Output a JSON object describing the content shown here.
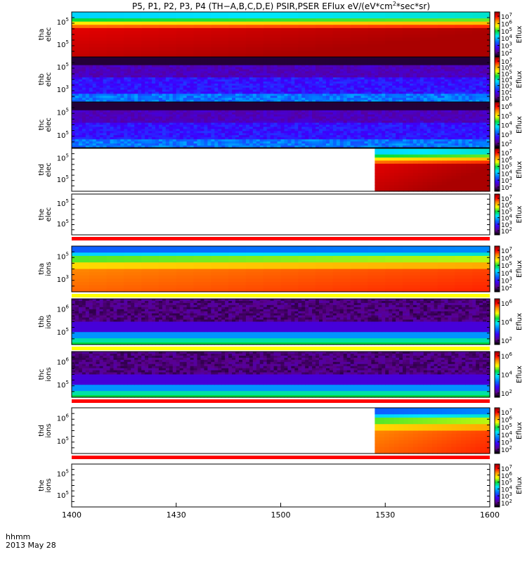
{
  "title_parts": {
    "main": "P5, P1, P2, P3, P4 (TH−A,B,C,D,E) PSIR,PSER EFlux eV/(eV*cm",
    "sup": "2",
    "tail": "*sec*sr)"
  },
  "x_axis": {
    "ticks": [
      "1400",
      "1430",
      "1500",
      "1530",
      "1600"
    ],
    "corner_label": "hhmm",
    "date_label": "2013 May 28"
  },
  "colorbar_label": "Eflux",
  "colors": {
    "bg": "#ffffff",
    "fill": "#ff0000",
    "flag_yellow": "#ffff00",
    "frame": "#000000"
  },
  "chart_data": {
    "type": "heatmap",
    "title": "P5, P1, P2, P3, P4 (TH−A,B,C,D,E) PSIR,PSER EFlux eV/(eV*cm^2*sec*sr)",
    "x_unit": "hhmm",
    "x_range": [
      "1400",
      "1600"
    ],
    "date": "2013 May 28",
    "colormap": "rainbow (black-purple-blue-cyan-green-yellow-red-darkred)",
    "panels": [
      {
        "id": "tha_elec",
        "ylabel": [
          "tha",
          "elec"
        ],
        "yticks": [
          {
            "base": "10",
            "exp": "5"
          },
          {
            "base": "10",
            "exp": "5"
          }
        ],
        "cbar_ticks": [
          "7",
          "6",
          "5",
          "4",
          "3",
          "2"
        ],
        "data_start": 0,
        "profile": "elec_hot",
        "band_below": null
      },
      {
        "id": "thb_elec",
        "ylabel": [
          "thb",
          "elec"
        ],
        "yticks": [
          {
            "base": "10",
            "exp": "5"
          },
          {
            "base": "10",
            "exp": "3"
          }
        ],
        "cbar_ticks": [
          "7",
          "6",
          "5",
          "4",
          "3",
          "2",
          "1"
        ],
        "data_start": 0,
        "profile": "elec_cold",
        "band_below": null
      },
      {
        "id": "thc_elec",
        "ylabel": [
          "thc",
          "elec"
        ],
        "yticks": [
          {
            "base": "10",
            "exp": "5"
          },
          {
            "base": "10",
            "exp": "5"
          }
        ],
        "cbar_ticks": [
          "6",
          "5",
          "4",
          "3",
          "2"
        ],
        "data_start": 0,
        "profile": "elec_cold",
        "band_below": null
      },
      {
        "id": "thd_elec",
        "ylabel": [
          "thd",
          "elec"
        ],
        "yticks": [
          {
            "base": "10",
            "exp": "5"
          },
          {
            "base": "10",
            "exp": "5"
          }
        ],
        "cbar_ticks": [
          "7",
          "6",
          "5",
          "4",
          "3",
          "2"
        ],
        "data_start": 1527,
        "profile": "elec_hot",
        "band_below": null
      },
      {
        "id": "the_elec",
        "ylabel": [
          "the",
          "elec"
        ],
        "yticks": [
          {
            "base": "10",
            "exp": "5"
          },
          {
            "base": "10",
            "exp": "5"
          }
        ],
        "cbar_ticks": [
          "7",
          "6",
          "5",
          "4",
          "3",
          "2"
        ],
        "data_start": null,
        "profile": "none",
        "band_below": "red"
      },
      {
        "id": "tha_ions",
        "ylabel": [
          "tha",
          "ions"
        ],
        "yticks": [
          {
            "base": "10",
            "exp": "5"
          },
          {
            "base": "10",
            "exp": "3"
          }
        ],
        "cbar_ticks": [
          "7",
          "6",
          "5",
          "4",
          "3",
          "2"
        ],
        "data_start": 0,
        "profile": "ion_hot",
        "band_below": "yellow"
      },
      {
        "id": "thb_ions",
        "ylabel": [
          "thb",
          "ions"
        ],
        "yticks": [
          {
            "base": "10",
            "exp": "6"
          },
          {
            "base": "10",
            "exp": "5"
          }
        ],
        "cbar_ticks": [
          "6",
          "4",
          "2"
        ],
        "data_start": 0,
        "profile": "ion_cold",
        "band_below": "yellow"
      },
      {
        "id": "thc_ions",
        "ylabel": [
          "thc",
          "ions"
        ],
        "yticks": [
          {
            "base": "10",
            "exp": "6"
          },
          {
            "base": "10",
            "exp": "5"
          }
        ],
        "cbar_ticks": [
          "6",
          "4",
          "2"
        ],
        "data_start": 0,
        "profile": "ion_cold",
        "band_below": "red"
      },
      {
        "id": "thd_ions",
        "ylabel": [
          "thd",
          "ions"
        ],
        "yticks": [
          {
            "base": "10",
            "exp": "6"
          },
          {
            "base": "10",
            "exp": "5"
          }
        ],
        "cbar_ticks": [
          "7",
          "6",
          "5",
          "4",
          "3",
          "2"
        ],
        "data_start": 1527,
        "profile": "ion_hot",
        "band_below": "red"
      },
      {
        "id": "the_ions",
        "ylabel": [
          "the",
          "ions"
        ],
        "yticks": [
          {
            "base": "10",
            "exp": "5"
          },
          {
            "base": "10",
            "exp": "5"
          }
        ],
        "cbar_ticks": [
          "7",
          "6",
          "5",
          "4",
          "3",
          "2"
        ],
        "data_start": null,
        "profile": "none",
        "band_below": null
      }
    ]
  }
}
